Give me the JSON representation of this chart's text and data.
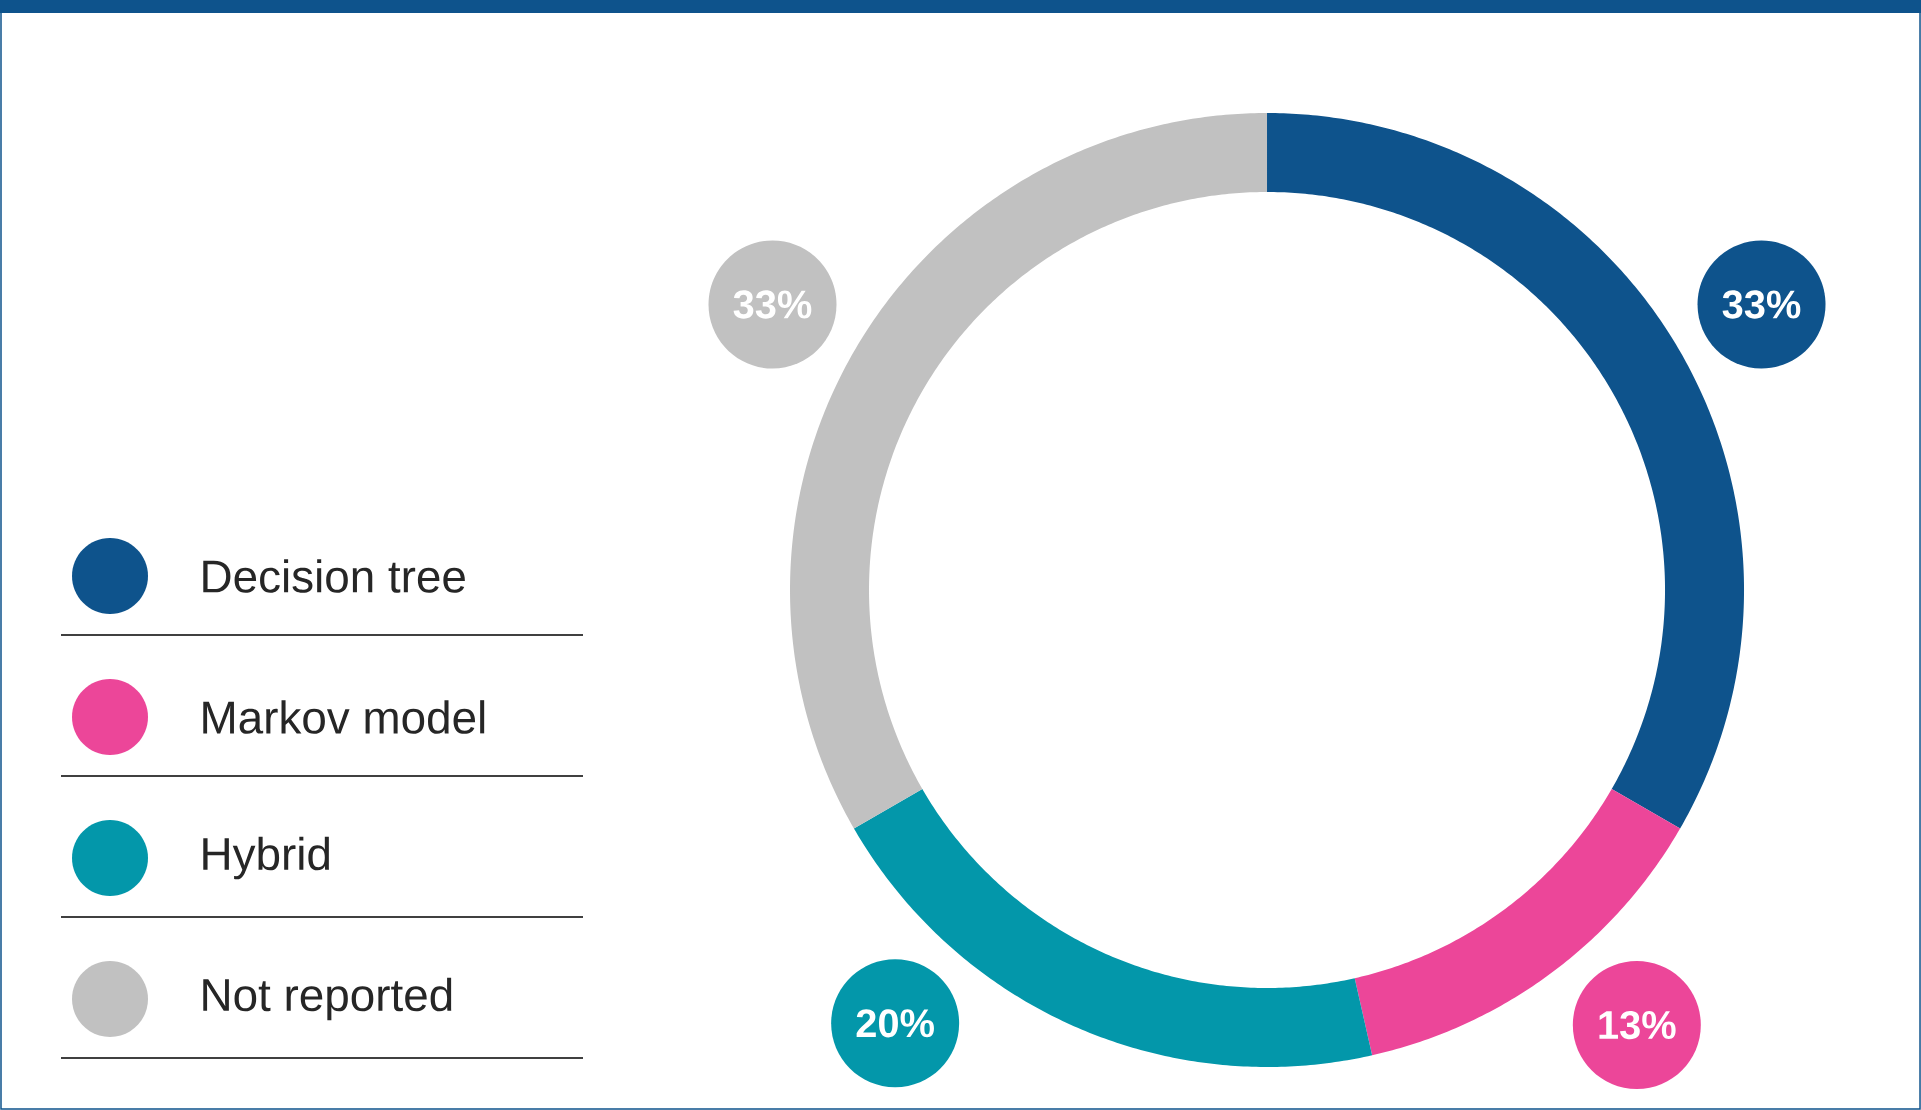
{
  "chart_data": {
    "type": "donut",
    "categories": [
      "Decision tree",
      "Markov model",
      "Hybrid",
      "Not reported"
    ],
    "values": [
      33,
      13,
      20,
      33
    ],
    "colors": [
      "#0e538c",
      "#ec4699",
      "#0397aa",
      "#c1c1c1"
    ],
    "value_labels": [
      "33%",
      "13%",
      "20%",
      "33%"
    ],
    "legend": "left"
  }
}
